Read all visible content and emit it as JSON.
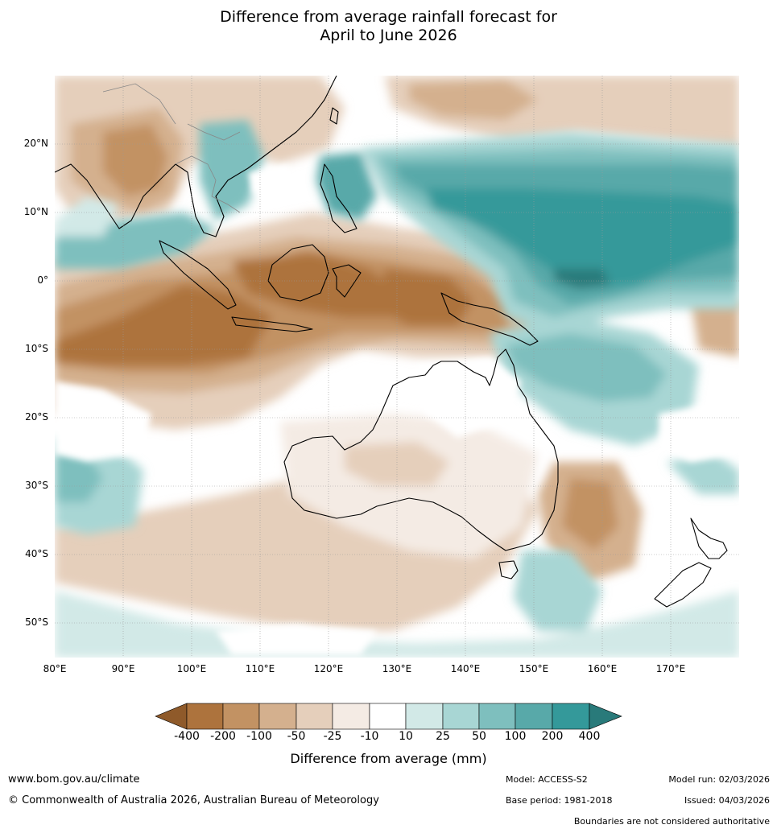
{
  "title_line1": "Difference from average rainfall forecast for",
  "title_line2": "April to June 2026",
  "map": {
    "lon_range": [
      80,
      180
    ],
    "lat_range": [
      -55,
      30
    ],
    "lat_labels": [
      "20°N",
      "10°N",
      "0°",
      "10°S",
      "20°S",
      "30°S",
      "40°S",
      "50°S"
    ],
    "lon_labels": [
      "80°E",
      "90°E",
      "100°E",
      "110°E",
      "120°E",
      "130°E",
      "140°E",
      "150°E",
      "160°E",
      "170°E"
    ]
  },
  "colorbar": {
    "label": "Difference from average (mm)",
    "ticks": [
      "-400",
      "-200",
      "-100",
      "-50",
      "-25",
      "-10",
      "10",
      "25",
      "50",
      "100",
      "200",
      "400"
    ],
    "colors": [
      "#8f5a2a",
      "#ad733d",
      "#c29263",
      "#d4b08e",
      "#e5cfbb",
      "#f4ebe4",
      "#ffffff",
      "#d2e9e7",
      "#a8d6d4",
      "#7ebfbe",
      "#58a9a9",
      "#34999a",
      "#297a7a"
    ]
  },
  "footer": {
    "website": "www.bom.gov.au/climate",
    "copyright": "© Commonwealth of Australia 2026, Australian Bureau of Meteorology",
    "model": "Model: ACCESS-S2",
    "base_period": "Base period: 1981-2018",
    "model_run": "Model run: 02/03/2026",
    "issued": "Issued: 04/03/2026",
    "boundaries": "Boundaries are not considered authoritative"
  }
}
